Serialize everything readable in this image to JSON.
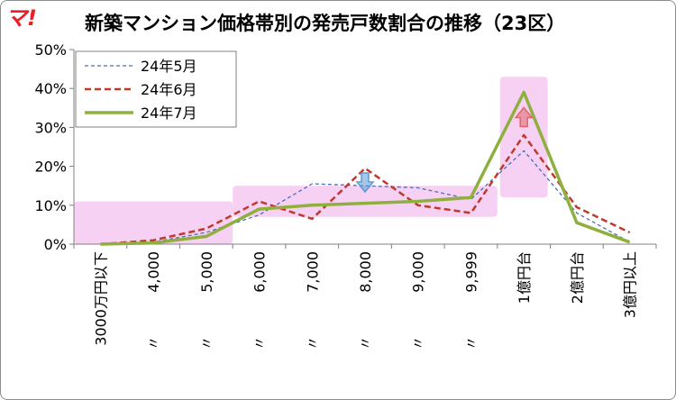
{
  "logo": {
    "text": "マ!"
  },
  "chart_data": {
    "type": "line",
    "title": "新築マンション価格帯別の発売戸数割合の推移（23区）",
    "categories": [
      "3000万円以下",
      "〃　　　4,000",
      "〃　　　5,000",
      "〃　　　6,000",
      "〃　　　7,000",
      "〃　　　8,000",
      "〃　　　9,000",
      "〃　　　9,999",
      "1億円台",
      "2億円台",
      "3億円以上"
    ],
    "y_ticks": [
      "0%",
      "10%",
      "20%",
      "30%",
      "40%",
      "50%"
    ],
    "ylim": [
      0,
      50
    ],
    "series": [
      {
        "name": "24年5月",
        "values": [
          0,
          0.5,
          3,
          7.5,
          15.5,
          15,
          14.5,
          11.5,
          24,
          8,
          0.5
        ],
        "color": "#4a6fb5",
        "style": "dashed-thin"
      },
      {
        "name": "24年6月",
        "values": [
          0,
          1,
          4,
          11,
          6.5,
          19.5,
          10,
          8,
          28,
          9.5,
          3
        ],
        "color": "#c0392b",
        "style": "dashed-thick"
      },
      {
        "name": "24年7月",
        "values": [
          0,
          0.3,
          2,
          9,
          10,
          10.5,
          11,
          12,
          39,
          5.5,
          0.5
        ],
        "color": "#8fb03e",
        "style": "solid-thick"
      }
    ],
    "highlights": [
      {
        "from": 0,
        "to": 2,
        "ymin": 0,
        "ymax": 11
      },
      {
        "from": 3,
        "to": 7,
        "ymin": 7,
        "ymax": 15
      },
      {
        "from": 8,
        "to": 8,
        "ymin": 12,
        "ymax": 43
      }
    ],
    "arrows": [
      {
        "at": 5,
        "value": 15.5,
        "direction": "down",
        "color": "#5b9bd5"
      },
      {
        "at": 8,
        "value": 33,
        "direction": "up",
        "color": "#e06666"
      }
    ],
    "grid": false,
    "legend_placement": "top-left"
  }
}
